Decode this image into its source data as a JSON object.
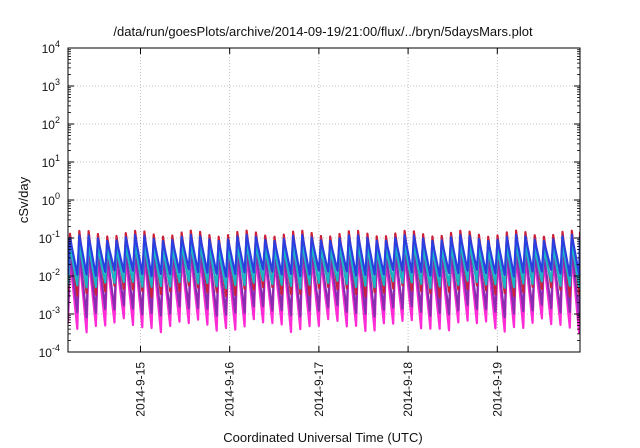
{
  "chart_data": {
    "type": "line",
    "title": "/data/run/goesPlots/archive/2014-09-19/21:00/flux/../bryn/5daysMars.plot",
    "xlabel": "Coordinated Universal Time (UTC)",
    "ylabel": "cSv/day",
    "y_scale": "log",
    "ylim": [
      0.0001,
      10000
    ],
    "xlim": [
      "2014-09-14T04:30",
      "2014-09-19T22:15"
    ],
    "y_ticks": [
      {
        "base": "10",
        "exp": "-4",
        "value": 0.0001
      },
      {
        "base": "10",
        "exp": "-3",
        "value": 0.001
      },
      {
        "base": "10",
        "exp": "-2",
        "value": 0.01
      },
      {
        "base": "10",
        "exp": "-1",
        "value": 0.1
      },
      {
        "base": "10",
        "exp": "0",
        "value": 1
      },
      {
        "base": "10",
        "exp": "1",
        "value": 10
      },
      {
        "base": "10",
        "exp": "2",
        "value": 100
      },
      {
        "base": "10",
        "exp": "3",
        "value": 1000
      },
      {
        "base": "10",
        "exp": "4",
        "value": 10000
      }
    ],
    "x_ticks": [
      {
        "label": "2014-9-15",
        "value": "2014-09-15T00:00"
      },
      {
        "label": "2014-9-16",
        "value": "2014-09-16T00:00"
      },
      {
        "label": "2014-9-17",
        "value": "2014-09-17T00:00"
      },
      {
        "label": "2014-9-18",
        "value": "2014-09-18T00:00"
      },
      {
        "label": "2014-9-19",
        "value": "2014-09-19T00:00"
      }
    ],
    "grid": true,
    "pattern": "sawtooth, period about 2.5 h",
    "series": [
      {
        "color": "#cc1f3a",
        "peak": 0.13,
        "trough": 0.004
      },
      {
        "color": "#2b3fe0",
        "peak": 0.1,
        "trough": 0.012
      },
      {
        "color": "#19b6c8",
        "peak": 0.06,
        "trough": 0.006
      },
      {
        "color": "#8a2bb0",
        "peak": 0.045,
        "trough": 0.0012
      },
      {
        "color": "#ff2bd6",
        "peak": 0.03,
        "trough": 0.0005
      }
    ]
  }
}
